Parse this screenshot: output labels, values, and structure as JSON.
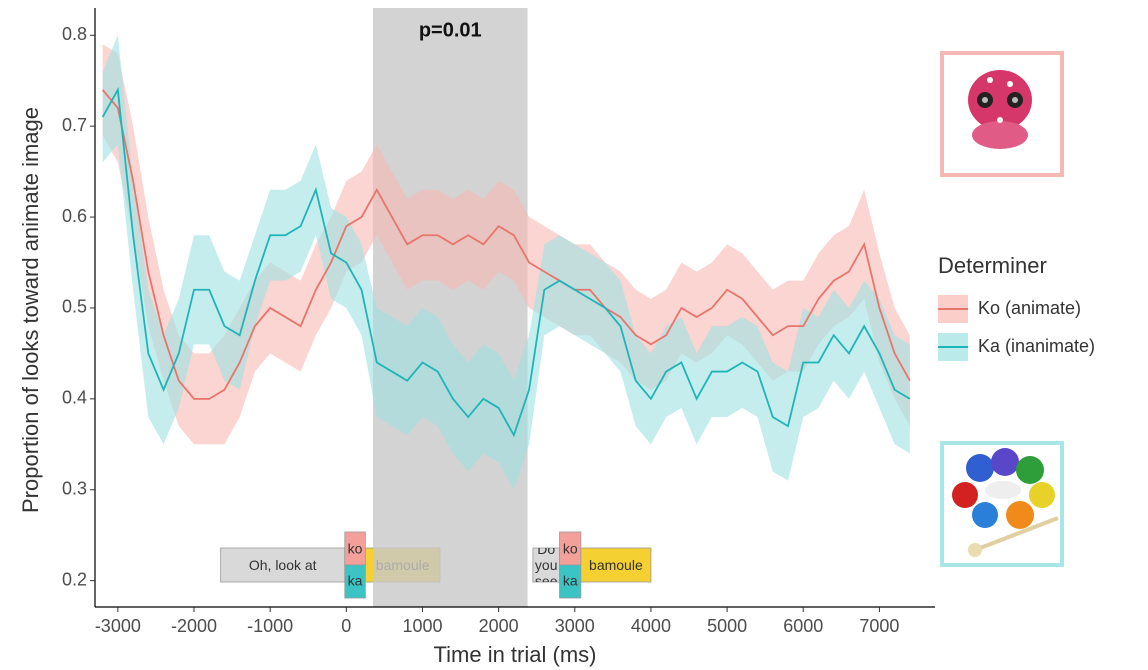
{
  "chart_data": {
    "type": "line",
    "x_label": "Time in trial (ms)",
    "y_label": "Proportion of looks toward animate image",
    "x": [
      -3200,
      -3000,
      -2800,
      -2600,
      -2400,
      -2200,
      -2000,
      -1800,
      -1600,
      -1400,
      -1200,
      -1000,
      -800,
      -600,
      -400,
      -200,
      0,
      200,
      400,
      600,
      800,
      1000,
      1200,
      1400,
      1600,
      1800,
      2000,
      2200,
      2400,
      2600,
      2800,
      3000,
      3200,
      3400,
      3600,
      3800,
      4000,
      4200,
      4400,
      4600,
      4800,
      5000,
      5200,
      5400,
      5600,
      5800,
      6000,
      6200,
      6400,
      6600,
      6800,
      7000,
      7200,
      7400
    ],
    "series": [
      {
        "name": "Ko (animate)",
        "color": "#e8756b",
        "band_color": "#f9b9b4",
        "values": [
          0.74,
          0.72,
          0.64,
          0.54,
          0.47,
          0.42,
          0.4,
          0.4,
          0.41,
          0.44,
          0.48,
          0.5,
          0.49,
          0.48,
          0.52,
          0.55,
          0.59,
          0.6,
          0.63,
          0.6,
          0.57,
          0.58,
          0.58,
          0.57,
          0.58,
          0.57,
          0.59,
          0.58,
          0.55,
          0.54,
          0.53,
          0.52,
          0.52,
          0.5,
          0.49,
          0.47,
          0.46,
          0.47,
          0.5,
          0.49,
          0.5,
          0.52,
          0.51,
          0.49,
          0.47,
          0.48,
          0.48,
          0.51,
          0.53,
          0.54,
          0.57,
          0.5,
          0.45,
          0.42
        ],
        "errors": [
          0.05,
          0.06,
          0.06,
          0.06,
          0.05,
          0.05,
          0.05,
          0.05,
          0.06,
          0.06,
          0.05,
          0.05,
          0.05,
          0.05,
          0.05,
          0.05,
          0.05,
          0.05,
          0.05,
          0.05,
          0.05,
          0.05,
          0.05,
          0.05,
          0.05,
          0.05,
          0.05,
          0.05,
          0.05,
          0.05,
          0.05,
          0.05,
          0.05,
          0.05,
          0.05,
          0.05,
          0.05,
          0.05,
          0.05,
          0.05,
          0.05,
          0.05,
          0.05,
          0.05,
          0.05,
          0.05,
          0.05,
          0.05,
          0.05,
          0.05,
          0.06,
          0.06,
          0.05,
          0.05
        ]
      },
      {
        "name": "Ka (inanimate)",
        "color": "#1fb5b8",
        "band_color": "#9ee1e3",
        "values": [
          0.71,
          0.74,
          0.58,
          0.45,
          0.41,
          0.45,
          0.52,
          0.52,
          0.48,
          0.47,
          0.53,
          0.58,
          0.58,
          0.59,
          0.63,
          0.56,
          0.55,
          0.52,
          0.44,
          0.43,
          0.42,
          0.44,
          0.43,
          0.4,
          0.38,
          0.4,
          0.39,
          0.36,
          0.41,
          0.52,
          0.53,
          0.52,
          0.51,
          0.5,
          0.48,
          0.42,
          0.4,
          0.43,
          0.44,
          0.4,
          0.43,
          0.43,
          0.44,
          0.43,
          0.38,
          0.37,
          0.44,
          0.44,
          0.47,
          0.45,
          0.48,
          0.45,
          0.41,
          0.4
        ],
        "errors": [
          0.05,
          0.06,
          0.06,
          0.07,
          0.06,
          0.06,
          0.06,
          0.06,
          0.06,
          0.06,
          0.05,
          0.05,
          0.05,
          0.05,
          0.05,
          0.05,
          0.05,
          0.05,
          0.06,
          0.06,
          0.06,
          0.06,
          0.06,
          0.06,
          0.06,
          0.06,
          0.06,
          0.06,
          0.06,
          0.05,
          0.05,
          0.05,
          0.05,
          0.05,
          0.05,
          0.05,
          0.05,
          0.05,
          0.05,
          0.05,
          0.05,
          0.05,
          0.05,
          0.05,
          0.06,
          0.06,
          0.06,
          0.05,
          0.05,
          0.05,
          0.05,
          0.06,
          0.06,
          0.06
        ]
      }
    ],
    "highlight": {
      "start": 350,
      "end": 2380,
      "label": "p=0.01",
      "color": "#c8c8c8"
    },
    "annotations": [
      {
        "text": "Oh, look at",
        "start": -1650,
        "end": -20,
        "color": "#d9d9d9"
      },
      {
        "top": "ko",
        "bottom": "ka",
        "start": -20,
        "end": 250,
        "top_color": "#f4a09a",
        "bottom_color": "#3cc4c4"
      },
      {
        "text": "bamoule",
        "start": 250,
        "end": 1230,
        "color": "#f5d033"
      },
      {
        "text": "Do you see",
        "start": 2450,
        "end": 2800,
        "color": "#d9d9d9"
      },
      {
        "top": "ko",
        "bottom": "ka",
        "start": 2800,
        "end": 3080,
        "top_color": "#f4a09a",
        "bottom_color": "#3cc4c4"
      },
      {
        "text": "bamoule",
        "start": 3080,
        "end": 4000,
        "color": "#f5d033"
      }
    ],
    "legend_title": "Determiner",
    "legend": "right",
    "xlim": [
      -3300,
      7730
    ],
    "ylim": [
      0.171,
      0.83
    ],
    "xticks": [
      -3000,
      -2000,
      -1000,
      0,
      1000,
      2000,
      3000,
      4000,
      5000,
      6000,
      7000
    ],
    "yticks": [
      0.2,
      0.3,
      0.4,
      0.5,
      0.6,
      0.7,
      0.8
    ]
  }
}
